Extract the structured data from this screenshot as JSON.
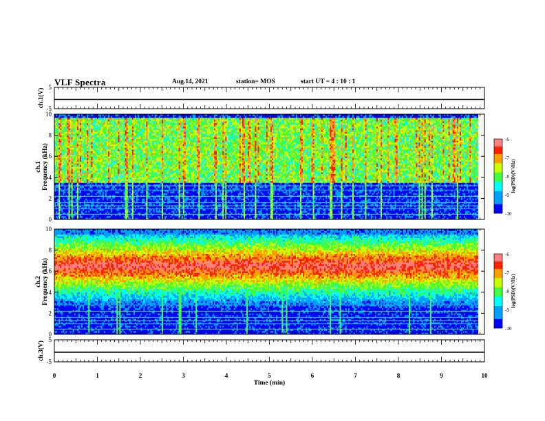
{
  "header": {
    "title": "VLF Spectra",
    "date": "Aug.14, 2021",
    "station": "station= MOS",
    "start": "start  UT =   4 : 10 : 1"
  },
  "chart_data": [
    {
      "type": "line",
      "name": "ch1-voltage",
      "ylabel": "ch.1(V)",
      "ylim": [
        -5,
        5
      ],
      "yticks": [
        "5",
        "-5"
      ],
      "xlim": [
        0,
        10
      ],
      "series": [
        {
          "values": [
            {
              "x": 0,
              "y": 0
            },
            {
              "x": 10,
              "y": 0
            }
          ]
        }
      ]
    },
    {
      "type": "heatmap",
      "name": "ch1-spectrogram",
      "ylabel": "ch.1\nFrequency (kHz)",
      "ylim": [
        0,
        10
      ],
      "yticks": [
        "10",
        "8",
        "6",
        "4",
        "2",
        "0"
      ],
      "xlim": [
        0,
        9.85
      ],
      "colorbar": {
        "label": "log(PSD)(V²/Hz)",
        "range": [
          -10,
          -6
        ],
        "ticks": [
          "-6",
          "-7",
          "-8",
          "-9",
          "-10"
        ]
      },
      "emission_band_khz": [
        3.5,
        9.6
      ],
      "horizontal_lines_khz": [
        0.5,
        1.0,
        1.3,
        1.6,
        2.2,
        2.8,
        3.2
      ]
    },
    {
      "type": "heatmap",
      "name": "ch2-spectrogram",
      "ylabel": "ch.2\nFrequency (kHz)",
      "ylim": [
        0,
        10
      ],
      "yticks": [
        "10",
        "8",
        "6",
        "4",
        "2",
        "0"
      ],
      "xlim": [
        0,
        9.85
      ],
      "colorbar": {
        "label": "log(PSD)(V²/Hz)",
        "range": [
          -10,
          -6
        ],
        "ticks": [
          "-6",
          "-7",
          "-8",
          "-9",
          "-10"
        ]
      },
      "emission_peak_khz": 6.5,
      "horizontal_lines_khz": [
        0.5,
        1.0,
        1.3,
        1.6,
        2.2,
        2.8
      ]
    },
    {
      "type": "line",
      "name": "ch3-voltage",
      "ylabel": "ch.3(V)",
      "ylim": [
        -5,
        5
      ],
      "yticks": [
        "5",
        "-5"
      ],
      "xlim": [
        0,
        10
      ],
      "series": [
        {
          "values": [
            {
              "x": 0,
              "y": 0
            },
            {
              "x": 10,
              "y": 0
            }
          ]
        }
      ]
    }
  ],
  "xaxis": {
    "label": "Time  (min)",
    "range": [
      0,
      10
    ],
    "ticks": [
      "0",
      "1",
      "2",
      "3",
      "4",
      "5",
      "6",
      "7",
      "8",
      "9",
      "10"
    ]
  }
}
